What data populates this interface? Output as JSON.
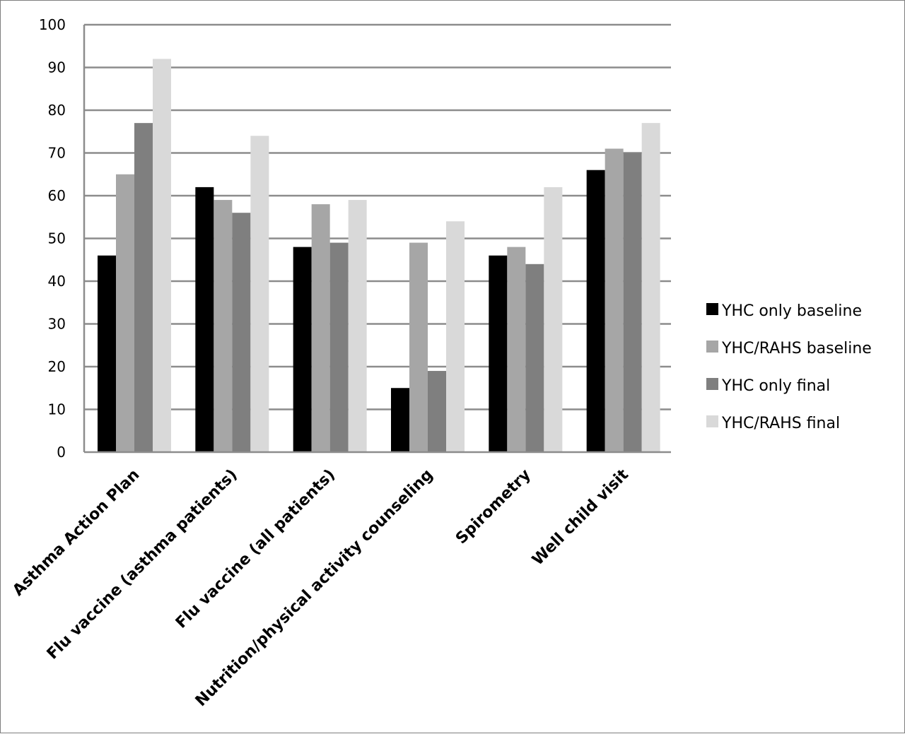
{
  "chart_data": {
    "type": "bar",
    "title": "",
    "xlabel": "",
    "ylabel": "",
    "ylim": [
      0,
      100
    ],
    "yticks": [
      0,
      10,
      20,
      30,
      40,
      50,
      60,
      70,
      80,
      90,
      100
    ],
    "grid": true,
    "legend_position": "right",
    "categories": [
      "Asthma Action Plan",
      "Flu vaccine (asthma patients)",
      "Flu vaccine (all patients)",
      "Nutrition/physical activity counseling",
      "Spirometry",
      "Well child visit"
    ],
    "series": [
      {
        "name": "YHC only baseline",
        "color": "#000000",
        "values": [
          46,
          62,
          48,
          15,
          46,
          66
        ]
      },
      {
        "name": "YHC/RAHS baseline",
        "color": "#a6a6a6",
        "values": [
          65,
          59,
          58,
          49,
          48,
          71
        ]
      },
      {
        "name": "YHC only final",
        "color": "#7f7f7f",
        "values": [
          77,
          56,
          49,
          19,
          44,
          70
        ]
      },
      {
        "name": "YHC/RAHS final",
        "color": "#d9d9d9",
        "values": [
          92,
          74,
          59,
          54,
          62,
          77
        ]
      }
    ]
  }
}
